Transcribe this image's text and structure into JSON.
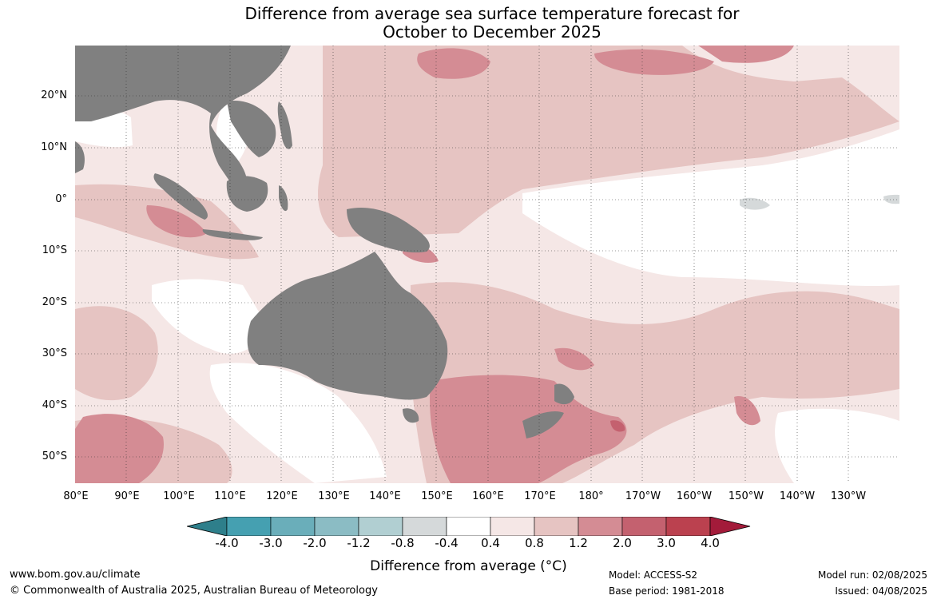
{
  "title": {
    "line1": "Difference from average sea surface temperature forecast for",
    "line2": "October to December 2025"
  },
  "map": {
    "latitude_labels": [
      "20°N",
      "10°N",
      "0°",
      "10°S",
      "20°S",
      "30°S",
      "40°S",
      "50°S"
    ],
    "longitude_labels": [
      "80°E",
      "90°E",
      "100°E",
      "110°E",
      "120°E",
      "130°E",
      "140°E",
      "150°E",
      "160°E",
      "170°E",
      "180°",
      "170°W",
      "160°W",
      "150°W",
      "140°W",
      "130°W"
    ],
    "land_color": "#808080",
    "grid_style": "dotted"
  },
  "colorbar": {
    "tick_labels": [
      "-4.0",
      "-3.0",
      "-2.0",
      "-1.2",
      "-0.8",
      "-0.4",
      "0.4",
      "0.8",
      "1.2",
      "2.0",
      "3.0",
      "4.0"
    ],
    "colors": [
      "#2e7f8b",
      "#45a0b1",
      "#6aaeba",
      "#8bbcc4",
      "#b1cfd2",
      "#d5d9da",
      "#ffffff",
      "#f5e7e6",
      "#e6c4c2",
      "#d48c94",
      "#c4616f",
      "#bb414f",
      "#a31b3a"
    ],
    "title": "Difference from average (°C)"
  },
  "footer": {
    "website": "www.bom.gov.au/climate",
    "copyright": "© Commonwealth of Australia 2025, Australian Bureau of Meteorology",
    "model": "Model: ACCESS-S2",
    "base_period": "Base period: 1981-2018",
    "model_run": "Model run: 02/08/2025",
    "issued": "Issued: 04/08/2025"
  }
}
